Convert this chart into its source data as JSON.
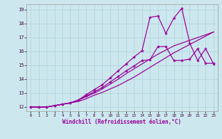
{
  "bg_color": "#cce8ee",
  "line_color": "#990099",
  "grid_color": "#b0d0d8",
  "xlim": [
    -0.5,
    23.5
  ],
  "ylim": [
    11.7,
    19.4
  ],
  "xticks": [
    0,
    1,
    2,
    3,
    4,
    5,
    6,
    7,
    8,
    9,
    10,
    11,
    12,
    13,
    14,
    15,
    16,
    17,
    18,
    19,
    20,
    21,
    22,
    23
  ],
  "yticks": [
    12,
    13,
    14,
    15,
    16,
    17,
    18,
    19
  ],
  "xlabel": "Windchill (Refroidissement éolien,°C)",
  "series": [
    {
      "x": [
        0,
        1,
        2,
        3,
        4,
        5,
        6,
        7,
        8,
        9,
        10,
        11,
        12,
        13,
        14,
        15,
        16,
        17,
        18,
        19,
        20,
        21,
        22,
        23
      ],
      "y": [
        12,
        12,
        12,
        12.1,
        12.2,
        12.3,
        12.4,
        12.6,
        12.85,
        13.05,
        13.3,
        13.55,
        13.85,
        14.15,
        14.5,
        14.85,
        15.2,
        15.55,
        15.9,
        16.2,
        16.5,
        16.8,
        17.1,
        17.4
      ],
      "marker": false,
      "linestyle": "-",
      "lw": 0.9
    },
    {
      "x": [
        0,
        1,
        2,
        3,
        4,
        5,
        6,
        7,
        8,
        9,
        10,
        11,
        12,
        13,
        14,
        15,
        16,
        17,
        18,
        19,
        20,
        21,
        22,
        23
      ],
      "y": [
        12,
        12,
        12,
        12.1,
        12.2,
        12.3,
        12.5,
        12.75,
        13.0,
        13.3,
        13.65,
        14.0,
        14.4,
        14.75,
        15.1,
        15.45,
        15.8,
        16.1,
        16.4,
        16.6,
        16.8,
        17.0,
        17.2,
        17.4
      ],
      "marker": false,
      "linestyle": "-",
      "lw": 0.9
    },
    {
      "x": [
        0,
        1,
        2,
        3,
        4,
        5,
        6,
        7,
        8,
        9,
        10,
        11,
        12,
        13,
        14,
        15,
        16,
        17,
        18,
        19,
        20,
        21,
        22,
        23
      ],
      "y": [
        12,
        12,
        12.0,
        12.1,
        12.2,
        12.3,
        12.5,
        12.8,
        13.1,
        13.4,
        13.8,
        14.2,
        14.6,
        14.95,
        15.35,
        15.4,
        16.35,
        16.35,
        15.35,
        15.35,
        15.45,
        16.2,
        15.15,
        15.15
      ],
      "marker": true,
      "linestyle": "-",
      "lw": 0.9
    },
    {
      "x": [
        0,
        1,
        2,
        3,
        4,
        5,
        6,
        7,
        8,
        9,
        10,
        11,
        12,
        13,
        14,
        15,
        16,
        17,
        18,
        19,
        20,
        21,
        22,
        23
      ],
      "y": [
        12,
        12,
        12,
        12.1,
        12.2,
        12.3,
        12.5,
        12.9,
        13.25,
        13.6,
        14.1,
        14.6,
        15.1,
        15.6,
        16.05,
        18.45,
        18.55,
        17.3,
        18.4,
        19.1,
        16.6,
        15.35,
        16.2,
        15.1
      ],
      "marker": true,
      "linestyle": "-",
      "lw": 0.9
    }
  ]
}
